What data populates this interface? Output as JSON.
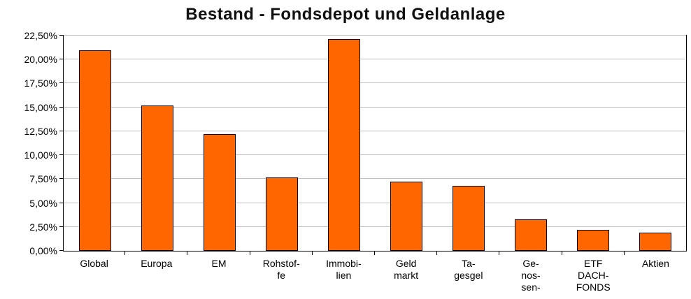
{
  "chart_data": {
    "type": "bar",
    "title": "Bestand - Fondsdepot und Geldanlage",
    "categories": [
      "Global",
      "Europa",
      "EM",
      "Rohstof-\nfe",
      "Immobi-\nlien",
      "Geld\nmarkt",
      "Ta-\ngesgel",
      "Ge-\nnos-\nsen-",
      "ETF\nDACH-\nFONDS",
      "Aktien"
    ],
    "values": [
      21.0,
      15.2,
      12.2,
      7.7,
      22.1,
      7.2,
      6.8,
      3.3,
      2.2,
      1.9
    ],
    "xlabel": "",
    "ylabel": "",
    "ylim": [
      0,
      22.5
    ],
    "y_tick_step": 2.5,
    "y_tick_labels": [
      "0,00%",
      "2,50%",
      "5,00%",
      "7,50%",
      "10,00%",
      "12,50%",
      "15,00%",
      "17,50%",
      "20,00%",
      "22,50%"
    ],
    "grid": true,
    "legend_position": "none",
    "bar_color": "#ff6600",
    "bar_border_color": "#000000",
    "gridline_color": "#c0c0c0",
    "axis_color": "#000000",
    "background_color": "#ffffff"
  }
}
